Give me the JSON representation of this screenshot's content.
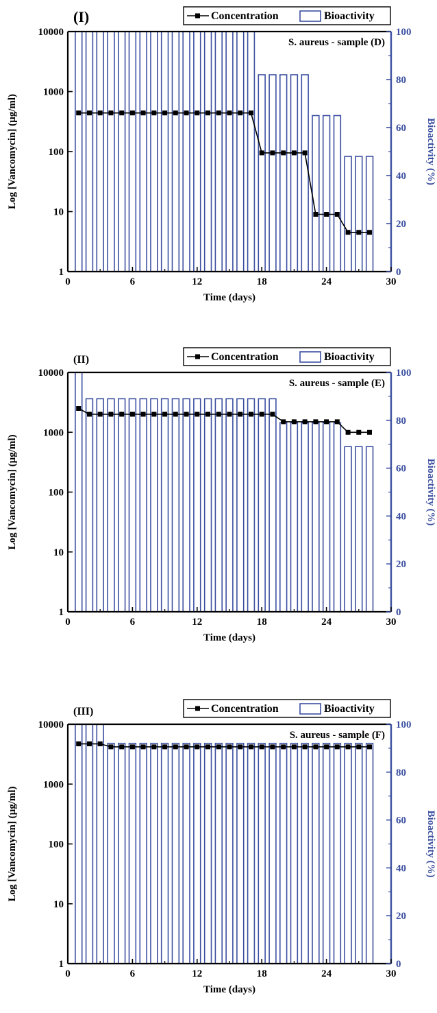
{
  "chart_data": [
    {
      "type": "bar",
      "panel_label": "(I)",
      "title": "S. aureus - sample (D)",
      "xlabel": "Time (days)",
      "ylabel_left": "Log [Vancomycin] (µg/ml)",
      "ylabel_right": "Bioactivity (%)",
      "x_ticks": [
        "0",
        "6",
        "12",
        "18",
        "24",
        "30"
      ],
      "y_left_ticks": [
        "1",
        "10",
        "100",
        "1000",
        "10000"
      ],
      "y_right_ticks": [
        "0",
        "20",
        "40",
        "60",
        "80",
        "100"
      ],
      "xlim": [
        0,
        30
      ],
      "ylim_left": [
        1,
        10000
      ],
      "ylim_right": [
        0,
        100
      ],
      "y_left_scale": "log",
      "legend": {
        "placement": "top",
        "entries": [
          "Concentration",
          "Bioactivity"
        ]
      },
      "x": [
        1,
        2,
        3,
        4,
        5,
        6,
        7,
        8,
        9,
        10,
        11,
        12,
        13,
        14,
        15,
        16,
        17,
        18,
        19,
        20,
        21,
        22,
        23,
        24,
        25,
        26,
        27,
        28
      ],
      "series": [
        {
          "name": "Concentration",
          "axis": "left",
          "kind": "line",
          "values": [
            440,
            440,
            440,
            440,
            440,
            440,
            440,
            440,
            440,
            440,
            440,
            440,
            440,
            440,
            440,
            440,
            440,
            95,
            95,
            95,
            95,
            95,
            9,
            9,
            9,
            4.5,
            4.5,
            4.5
          ]
        },
        {
          "name": "Bioactivity",
          "axis": "right",
          "kind": "bar",
          "values": [
            100,
            100,
            100,
            100,
            100,
            100,
            100,
            100,
            100,
            100,
            100,
            100,
            100,
            100,
            100,
            100,
            100,
            82,
            82,
            82,
            82,
            82,
            65,
            65,
            65,
            48,
            48,
            48
          ]
        }
      ]
    },
    {
      "type": "bar",
      "panel_label": "(II)",
      "title": "S. aureus - sample (E)",
      "xlabel": "Time (days)",
      "ylabel_left": "Log [Vancomycin] (µg/ml)",
      "ylabel_right": "Bioactivity (%)",
      "x_ticks": [
        "0",
        "6",
        "12",
        "18",
        "24",
        "30"
      ],
      "y_left_ticks": [
        "1",
        "10",
        "100",
        "1000",
        "10000"
      ],
      "y_right_ticks": [
        "0",
        "20",
        "40",
        "60",
        "80",
        "100"
      ],
      "xlim": [
        0,
        30
      ],
      "ylim_left": [
        1,
        10000
      ],
      "ylim_right": [
        0,
        100
      ],
      "y_left_scale": "log",
      "legend": {
        "placement": "top",
        "entries": [
          "Concentration",
          "Bioactivity"
        ]
      },
      "x": [
        1,
        2,
        3,
        4,
        5,
        6,
        7,
        8,
        9,
        10,
        11,
        12,
        13,
        14,
        15,
        16,
        17,
        18,
        19,
        20,
        21,
        22,
        23,
        24,
        25,
        26,
        27,
        28
      ],
      "series": [
        {
          "name": "Concentration",
          "axis": "left",
          "kind": "line",
          "values": [
            2500,
            2000,
            2000,
            2000,
            2000,
            2000,
            2000,
            2000,
            2000,
            2000,
            2000,
            2000,
            2000,
            2000,
            2000,
            2000,
            2000,
            2000,
            2000,
            1500,
            1500,
            1500,
            1500,
            1500,
            1500,
            1000,
            1000,
            1000
          ]
        },
        {
          "name": "Bioactivity",
          "axis": "right",
          "kind": "bar",
          "values": [
            100,
            89,
            89,
            89,
            89,
            89,
            89,
            89,
            89,
            89,
            89,
            89,
            89,
            89,
            89,
            89,
            89,
            89,
            89,
            79,
            79,
            79,
            79,
            79,
            79,
            69,
            69,
            69
          ]
        }
      ]
    },
    {
      "type": "bar",
      "panel_label": "(III)",
      "title": "S. aureus - sample (F)",
      "xlabel": "Time (days)",
      "ylabel_left": "Log [Vancomycin] (µg/ml)",
      "ylabel_right": "Bioactivity (%)",
      "x_ticks": [
        "0",
        "6",
        "12",
        "18",
        "24",
        "30"
      ],
      "y_left_ticks": [
        "1",
        "10",
        "100",
        "1000",
        "10000"
      ],
      "y_right_ticks": [
        "0",
        "20",
        "40",
        "60",
        "80",
        "100"
      ],
      "xlim": [
        0,
        30
      ],
      "ylim_left": [
        1,
        10000
      ],
      "ylim_right": [
        0,
        100
      ],
      "y_left_scale": "log",
      "legend": {
        "placement": "top",
        "entries": [
          "Concentration",
          "Bioactivity"
        ]
      },
      "x": [
        1,
        2,
        3,
        4,
        5,
        6,
        7,
        8,
        9,
        10,
        11,
        12,
        13,
        14,
        15,
        16,
        17,
        18,
        19,
        20,
        21,
        22,
        23,
        24,
        25,
        26,
        27,
        28
      ],
      "series": [
        {
          "name": "Concentration",
          "axis": "left",
          "kind": "line",
          "values": [
            4700,
            4700,
            4700,
            4200,
            4200,
            4200,
            4200,
            4200,
            4200,
            4200,
            4200,
            4200,
            4200,
            4200,
            4200,
            4200,
            4200,
            4200,
            4200,
            4200,
            4200,
            4200,
            4200,
            4200,
            4200,
            4200,
            4200,
            4200
          ]
        },
        {
          "name": "Bioactivity",
          "axis": "right",
          "kind": "bar",
          "values": [
            100,
            100,
            100,
            92,
            92,
            92,
            92,
            92,
            92,
            92,
            92,
            92,
            92,
            92,
            92,
            92,
            92,
            92,
            92,
            92,
            92,
            92,
            92,
            92,
            92,
            92,
            92,
            92
          ]
        }
      ]
    }
  ],
  "colors": {
    "bar_stroke": "#3b4fa0",
    "right_axis": "#3b4fa0",
    "line": "#000000",
    "axis": "#000000"
  }
}
